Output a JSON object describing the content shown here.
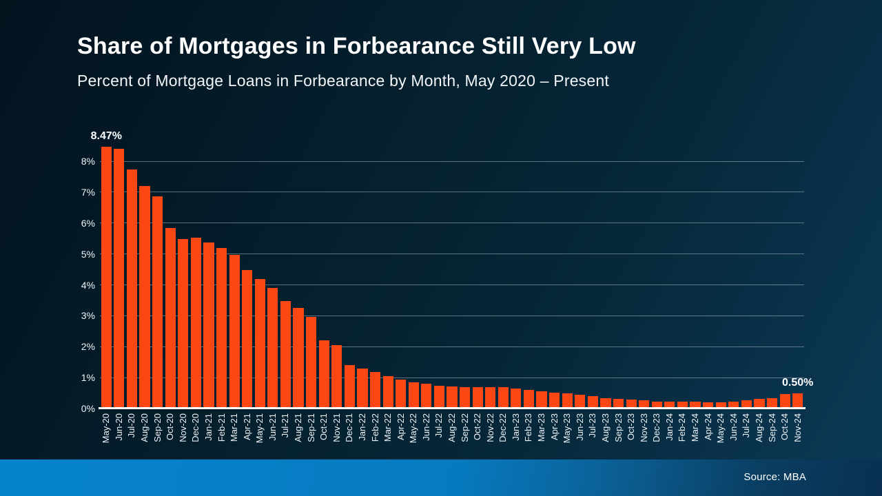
{
  "page": {
    "title": "Share of Mortgages in Forbearance Still Very Low",
    "subtitle": "Percent of Mortgage Loans in Forbearance by Month, May 2020 – Present",
    "source": "Source: MBA"
  },
  "colors": {
    "bar": "#fb4713",
    "background_top_left": "#02131e",
    "background_bottom_right": "#0b3a57",
    "footer_band_left": "#0583cd",
    "footer_band_right": "#093050",
    "gridline": "#a4b4be",
    "baseline": "#ffffff",
    "text": "#ffffff"
  },
  "chart_data": {
    "type": "bar",
    "title": "Share of Mortgages in Forbearance Still Very Low",
    "subtitle": "Percent of Mortgage Loans in Forbearance by Month, May 2020 – Present",
    "source": "Source: MBA",
    "xlabel": "",
    "ylabel": "",
    "ylim": [
      0,
      8.8
    ],
    "y_ticks": [
      "0%",
      "1%",
      "2%",
      "3%",
      "4%",
      "5%",
      "6%",
      "7%",
      "8%"
    ],
    "grid": "horizontal",
    "legend": "none",
    "categories": [
      "May-20",
      "Jun-20",
      "Jul-20",
      "Aug-20",
      "Sep-20",
      "Oct-20",
      "Nov-20",
      "Dec-20",
      "Jan-21",
      "Feb-21",
      "Mar-21",
      "Apr-21",
      "May-21",
      "Jun-21",
      "Jul-21",
      "Aug-21",
      "Sep-21",
      "Oct-21",
      "Nov-21",
      "Dec-21",
      "Jan-22",
      "Feb-22",
      "Mar-22",
      "Apr-22",
      "May-22",
      "Jun-22",
      "Jul-22",
      "Aug-22",
      "Sep-22",
      "Oct-22",
      "Nov-22",
      "Dec-22",
      "Jan-23",
      "Feb-23",
      "Mar-23",
      "Apr-23",
      "May-23",
      "Jun-23",
      "Jul-23",
      "Aug-23",
      "Sep-23",
      "Oct-23",
      "Nov-23",
      "Dec-23",
      "Jan-24",
      "Feb-24",
      "Mar-24",
      "Apr-24",
      "May-24",
      "Jun-24",
      "Jul-24",
      "Aug-24",
      "Sep-24",
      "Oct-24",
      "Nov-24"
    ],
    "values": [
      8.47,
      8.39,
      7.74,
      7.2,
      6.87,
      5.83,
      5.48,
      5.53,
      5.38,
      5.2,
      4.96,
      4.47,
      4.18,
      3.91,
      3.47,
      3.25,
      2.96,
      2.21,
      2.06,
      1.41,
      1.3,
      1.18,
      1.05,
      0.94,
      0.85,
      0.81,
      0.74,
      0.72,
      0.69,
      0.7,
      0.7,
      0.7,
      0.64,
      0.6,
      0.55,
      0.51,
      0.49,
      0.44,
      0.39,
      0.33,
      0.31,
      0.29,
      0.26,
      0.23,
      0.22,
      0.22,
      0.22,
      0.21,
      0.21,
      0.23,
      0.27,
      0.31,
      0.34,
      0.47,
      0.5
    ],
    "annotations": [
      {
        "index": 0,
        "label": "8.47%"
      },
      {
        "index": 54,
        "label": "0.50%"
      }
    ]
  }
}
